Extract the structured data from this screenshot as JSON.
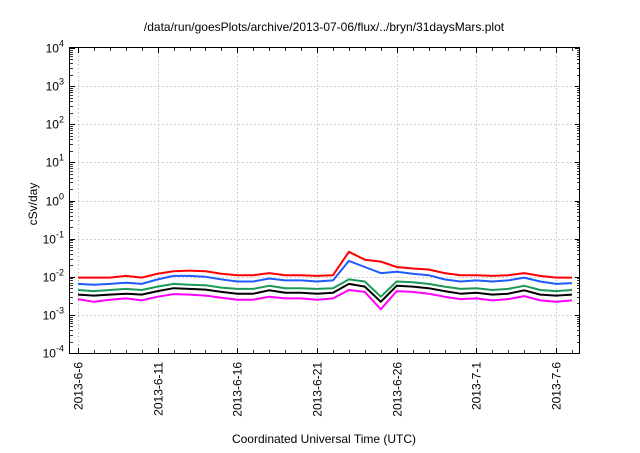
{
  "chart_data": {
    "type": "line",
    "title": "/data/run/goesPlots/archive/2013-07-06/flux/../bryn/31daysMars.plot",
    "xlabel": "Coordinated Universal Time (UTC)",
    "ylabel": "cSv/day",
    "yscale": "log",
    "ylim": [
      0.0001,
      10000
    ],
    "yticks": [
      {
        "value": 0.0001,
        "base": "10",
        "exp": "-4"
      },
      {
        "value": 0.001,
        "base": "10",
        "exp": "-3"
      },
      {
        "value": 0.01,
        "base": "10",
        "exp": "-2"
      },
      {
        "value": 0.1,
        "base": "10",
        "exp": "-1"
      },
      {
        "value": 1,
        "base": "10",
        "exp": "0"
      },
      {
        "value": 10,
        "base": "10",
        "exp": "1"
      },
      {
        "value": 100,
        "base": "10",
        "exp": "2"
      },
      {
        "value": 1000,
        "base": "10",
        "exp": "3"
      },
      {
        "value": 10000,
        "base": "10",
        "exp": "4"
      }
    ],
    "xlim": [
      "2013-06-05T12:00",
      "2013-07-07T12:00"
    ],
    "xticks": [
      "2013-6-6",
      "2013-6-11",
      "2013-6-16",
      "2013-6-21",
      "2013-6-26",
      "2013-7-1",
      "2013-7-6"
    ],
    "grid": true,
    "legend": "none",
    "x": [
      "2013-06-06",
      "2013-06-07",
      "2013-06-08",
      "2013-06-09",
      "2013-06-10",
      "2013-06-11",
      "2013-06-12",
      "2013-06-13",
      "2013-06-14",
      "2013-06-15",
      "2013-06-16",
      "2013-06-17",
      "2013-06-18",
      "2013-06-19",
      "2013-06-20",
      "2013-06-21",
      "2013-06-22",
      "2013-06-23",
      "2013-06-24",
      "2013-06-25",
      "2013-06-26",
      "2013-06-27",
      "2013-06-28",
      "2013-06-29",
      "2013-06-30",
      "2013-07-01",
      "2013-07-02",
      "2013-07-03",
      "2013-07-04",
      "2013-07-05",
      "2013-07-06",
      "2013-07-07"
    ],
    "series": [
      {
        "color": "#ff0000",
        "values": [
          0.0095,
          0.0095,
          0.0095,
          0.0105,
          0.0095,
          0.012,
          0.014,
          0.0145,
          0.014,
          0.012,
          0.011,
          0.011,
          0.0125,
          0.011,
          0.011,
          0.0105,
          0.011,
          0.045,
          0.028,
          0.025,
          0.018,
          0.0165,
          0.0155,
          0.0125,
          0.011,
          0.011,
          0.0105,
          0.011,
          0.0125,
          0.0105,
          0.0095,
          0.0095
        ]
      },
      {
        "color": "#1e5cff",
        "values": [
          0.0065,
          0.0062,
          0.0065,
          0.007,
          0.0065,
          0.0085,
          0.0105,
          0.0105,
          0.01,
          0.0085,
          0.0075,
          0.0075,
          0.009,
          0.008,
          0.008,
          0.0075,
          0.008,
          0.026,
          0.018,
          0.0125,
          0.0135,
          0.012,
          0.011,
          0.0085,
          0.0075,
          0.008,
          0.0075,
          0.008,
          0.0095,
          0.0075,
          0.0065,
          0.0068
        ]
      },
      {
        "color": "#1a9a55",
        "values": [
          0.0045,
          0.0042,
          0.0045,
          0.0048,
          0.0045,
          0.0055,
          0.0065,
          0.0062,
          0.006,
          0.0052,
          0.0048,
          0.0048,
          0.0058,
          0.005,
          0.005,
          0.0048,
          0.005,
          0.0085,
          0.0075,
          0.003,
          0.0075,
          0.0072,
          0.0065,
          0.0055,
          0.0048,
          0.005,
          0.0045,
          0.0048,
          0.0058,
          0.0045,
          0.0042,
          0.0045
        ]
      },
      {
        "color": "#000000",
        "values": [
          0.0034,
          0.0032,
          0.0034,
          0.0036,
          0.0034,
          0.0042,
          0.005,
          0.0048,
          0.0046,
          0.004,
          0.0036,
          0.0036,
          0.0044,
          0.0038,
          0.0038,
          0.0036,
          0.0038,
          0.0065,
          0.0055,
          0.0022,
          0.0058,
          0.0055,
          0.005,
          0.0042,
          0.0036,
          0.0038,
          0.0034,
          0.0036,
          0.0044,
          0.0034,
          0.0032,
          0.0034
        ]
      },
      {
        "color": "#ff00ff",
        "values": [
          0.0026,
          0.0022,
          0.0025,
          0.0027,
          0.0024,
          0.003,
          0.0035,
          0.0034,
          0.0032,
          0.0028,
          0.0025,
          0.0025,
          0.003,
          0.0027,
          0.0027,
          0.0025,
          0.0027,
          0.0045,
          0.004,
          0.0014,
          0.0042,
          0.004,
          0.0036,
          0.003,
          0.0026,
          0.0027,
          0.0024,
          0.0026,
          0.0031,
          0.0024,
          0.0022,
          0.0024
        ]
      }
    ]
  }
}
